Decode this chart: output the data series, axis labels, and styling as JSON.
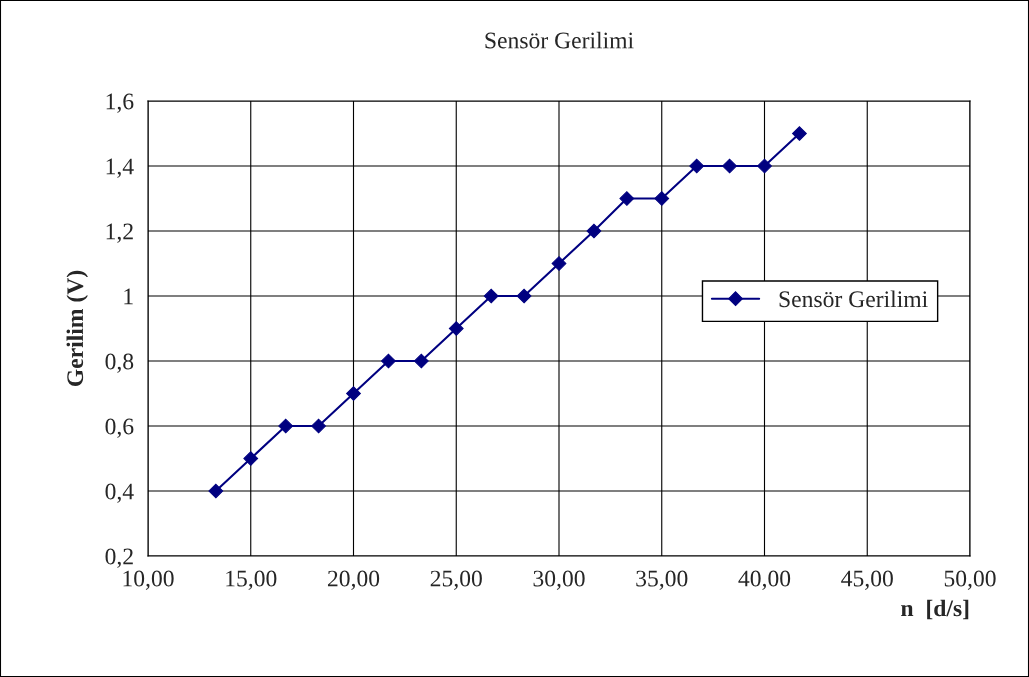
{
  "chart_data": {
    "type": "line",
    "title": "Sensör Gerilimi",
    "xlabel": "n  [d/s]",
    "ylabel": "Gerilim (V)",
    "x": [
      13.3,
      15,
      16.7,
      18.3,
      20,
      21.7,
      23.3,
      25,
      26.7,
      28.3,
      30,
      31.7,
      33.3,
      35,
      36.7,
      38.3,
      40,
      41.7
    ],
    "series": [
      {
        "name": "Sensör Gerilimi",
        "color": "#000080",
        "values": [
          0.4,
          0.5,
          0.6,
          0.6,
          0.7,
          0.8,
          0.8,
          0.9,
          1.0,
          1.0,
          1.1,
          1.2,
          1.3,
          1.3,
          1.4,
          1.4,
          1.4,
          1.5
        ]
      }
    ],
    "xlim": [
      10,
      50
    ],
    "xticks": [
      {
        "value": 10,
        "label": "10,00"
      },
      {
        "value": 15,
        "label": "15,00"
      },
      {
        "value": 20,
        "label": "20,00"
      },
      {
        "value": 25,
        "label": "25,00"
      },
      {
        "value": 30,
        "label": "30,00"
      },
      {
        "value": 35,
        "label": "35,00"
      },
      {
        "value": 40,
        "label": "40,00"
      },
      {
        "value": 45,
        "label": "45,00"
      },
      {
        "value": 50,
        "label": "50,00"
      }
    ],
    "ylim": [
      0.2,
      1.6
    ],
    "yticks": [
      {
        "value": 0.2,
        "label": "0,2"
      },
      {
        "value": 0.4,
        "label": "0,4"
      },
      {
        "value": 0.6,
        "label": "0,6"
      },
      {
        "value": 0.8,
        "label": "0,8"
      },
      1,
      {
        "value": 1.2,
        "label": "1,2"
      },
      {
        "value": 1.4,
        "label": "1,4"
      },
      {
        "value": 1.6,
        "label": "1,6"
      }
    ],
    "grid": true,
    "legend": "right",
    "marker": "diamond",
    "line_style": "solid"
  }
}
